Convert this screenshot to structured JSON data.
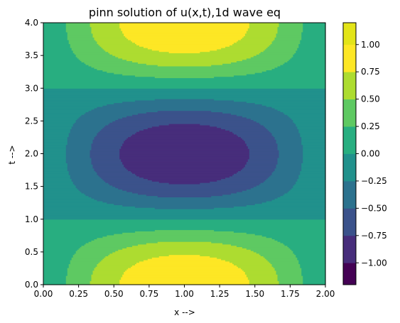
{
  "chart_data": {
    "type": "heatmap",
    "subtype": "filled-contour",
    "title": "pinn solution of u(x,t),1d wave eq",
    "xlabel": "x -->",
    "ylabel": "t -->",
    "xlim": [
      0,
      2
    ],
    "ylim": [
      0,
      4
    ],
    "xticks": [
      "0.00",
      "0.25",
      "0.50",
      "0.75",
      "1.00",
      "1.25",
      "1.50",
      "1.75",
      "2.00"
    ],
    "yticks": [
      "0.0",
      "0.5",
      "1.0",
      "1.5",
      "2.0",
      "2.5",
      "3.0",
      "3.5",
      "4.0"
    ],
    "field": "u(x,t) = sin(pi*x/2) * cos(pi*t/2)",
    "levels": [
      -1.2,
      -1.0,
      -0.75,
      -0.5,
      -0.25,
      0.0,
      0.25,
      0.5,
      0.75,
      1.0,
      1.2
    ],
    "level_colors": [
      "#440154",
      "#472d7b",
      "#3b528b",
      "#2c728e",
      "#21918c",
      "#28ae80",
      "#5ec962",
      "#addc30",
      "#fde725",
      "#e3e418"
    ],
    "colorbar": {
      "ticks": [
        "−1.00",
        "−0.75",
        "−0.50",
        "−0.25",
        "0.00",
        "0.25",
        "0.50",
        "0.75",
        "1.00"
      ],
      "tick_values": [
        -1.0,
        -0.75,
        -0.5,
        -0.25,
        0.0,
        0.25,
        0.5,
        0.75,
        1.0
      ],
      "range": [
        -1.2,
        1.2
      ]
    },
    "grid": false,
    "legend": "none",
    "colormap": "viridis"
  }
}
